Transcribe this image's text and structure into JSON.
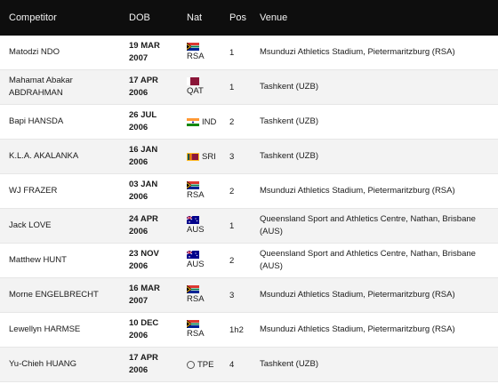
{
  "header": {
    "competitor": "Competitor",
    "dob": "DOB",
    "nat": "Nat",
    "pos": "Pos",
    "venue": "Venue"
  },
  "rows": [
    {
      "name": "Matodzi NDO",
      "dob1": "19 MAR",
      "dob2": "2007",
      "nat": "RSA",
      "flag": "rsa",
      "pos": "1",
      "venue": "Msunduzi Athletics Stadium, Pietermaritzburg (RSA)"
    },
    {
      "name": "Mahamat Abakar ABDRAHMAN",
      "dob1": "17 APR",
      "dob2": "2006",
      "nat": "QAT",
      "flag": "qat",
      "pos": "1",
      "venue": "Tashkent (UZB)"
    },
    {
      "name": "Bapi HANSDA",
      "dob1": "26 JUL",
      "dob2": "2006",
      "nat": "IND",
      "flag": "ind",
      "pos": "2",
      "venue": "Tashkent (UZB)"
    },
    {
      "name": "K.L.A. AKALANKA",
      "dob1": "16 JAN",
      "dob2": "2006",
      "nat": "SRI",
      "flag": "sri",
      "pos": "3",
      "venue": "Tashkent (UZB)"
    },
    {
      "name": "WJ FRAZER",
      "dob1": "03 JAN",
      "dob2": "2006",
      "nat": "RSA",
      "flag": "rsa",
      "pos": "2",
      "venue": "Msunduzi Athletics Stadium, Pietermaritzburg (RSA)"
    },
    {
      "name": "Jack LOVE",
      "dob1": "24 APR",
      "dob2": "2006",
      "nat": "AUS",
      "flag": "aus",
      "pos": "1",
      "venue": "Queensland Sport and Athletics Centre, Nathan, Brisbane (AUS)"
    },
    {
      "name": "Matthew HUNT",
      "dob1": "23 NOV",
      "dob2": "2006",
      "nat": "AUS",
      "flag": "aus",
      "pos": "2",
      "venue": "Queensland Sport and Athletics Centre, Nathan, Brisbane (AUS)"
    },
    {
      "name": "Morne ENGELBRECHT",
      "dob1": "16 MAR",
      "dob2": "2007",
      "nat": "RSA",
      "flag": "rsa",
      "pos": "3",
      "venue": "Msunduzi Athletics Stadium, Pietermaritzburg (RSA)"
    },
    {
      "name": "Lewellyn HARMSE",
      "dob1": "10 DEC",
      "dob2": "2006",
      "nat": "RSA",
      "flag": "rsa",
      "pos": "1h2",
      "venue": "Msunduzi Athletics Stadium, Pietermaritzburg (RSA)"
    },
    {
      "name": "Yu-Chieh HUANG",
      "dob1": "17 APR",
      "dob2": "2006",
      "nat": "TPE",
      "flag": "tpe",
      "pos": "4",
      "venue": "Tashkent (UZB)"
    }
  ]
}
